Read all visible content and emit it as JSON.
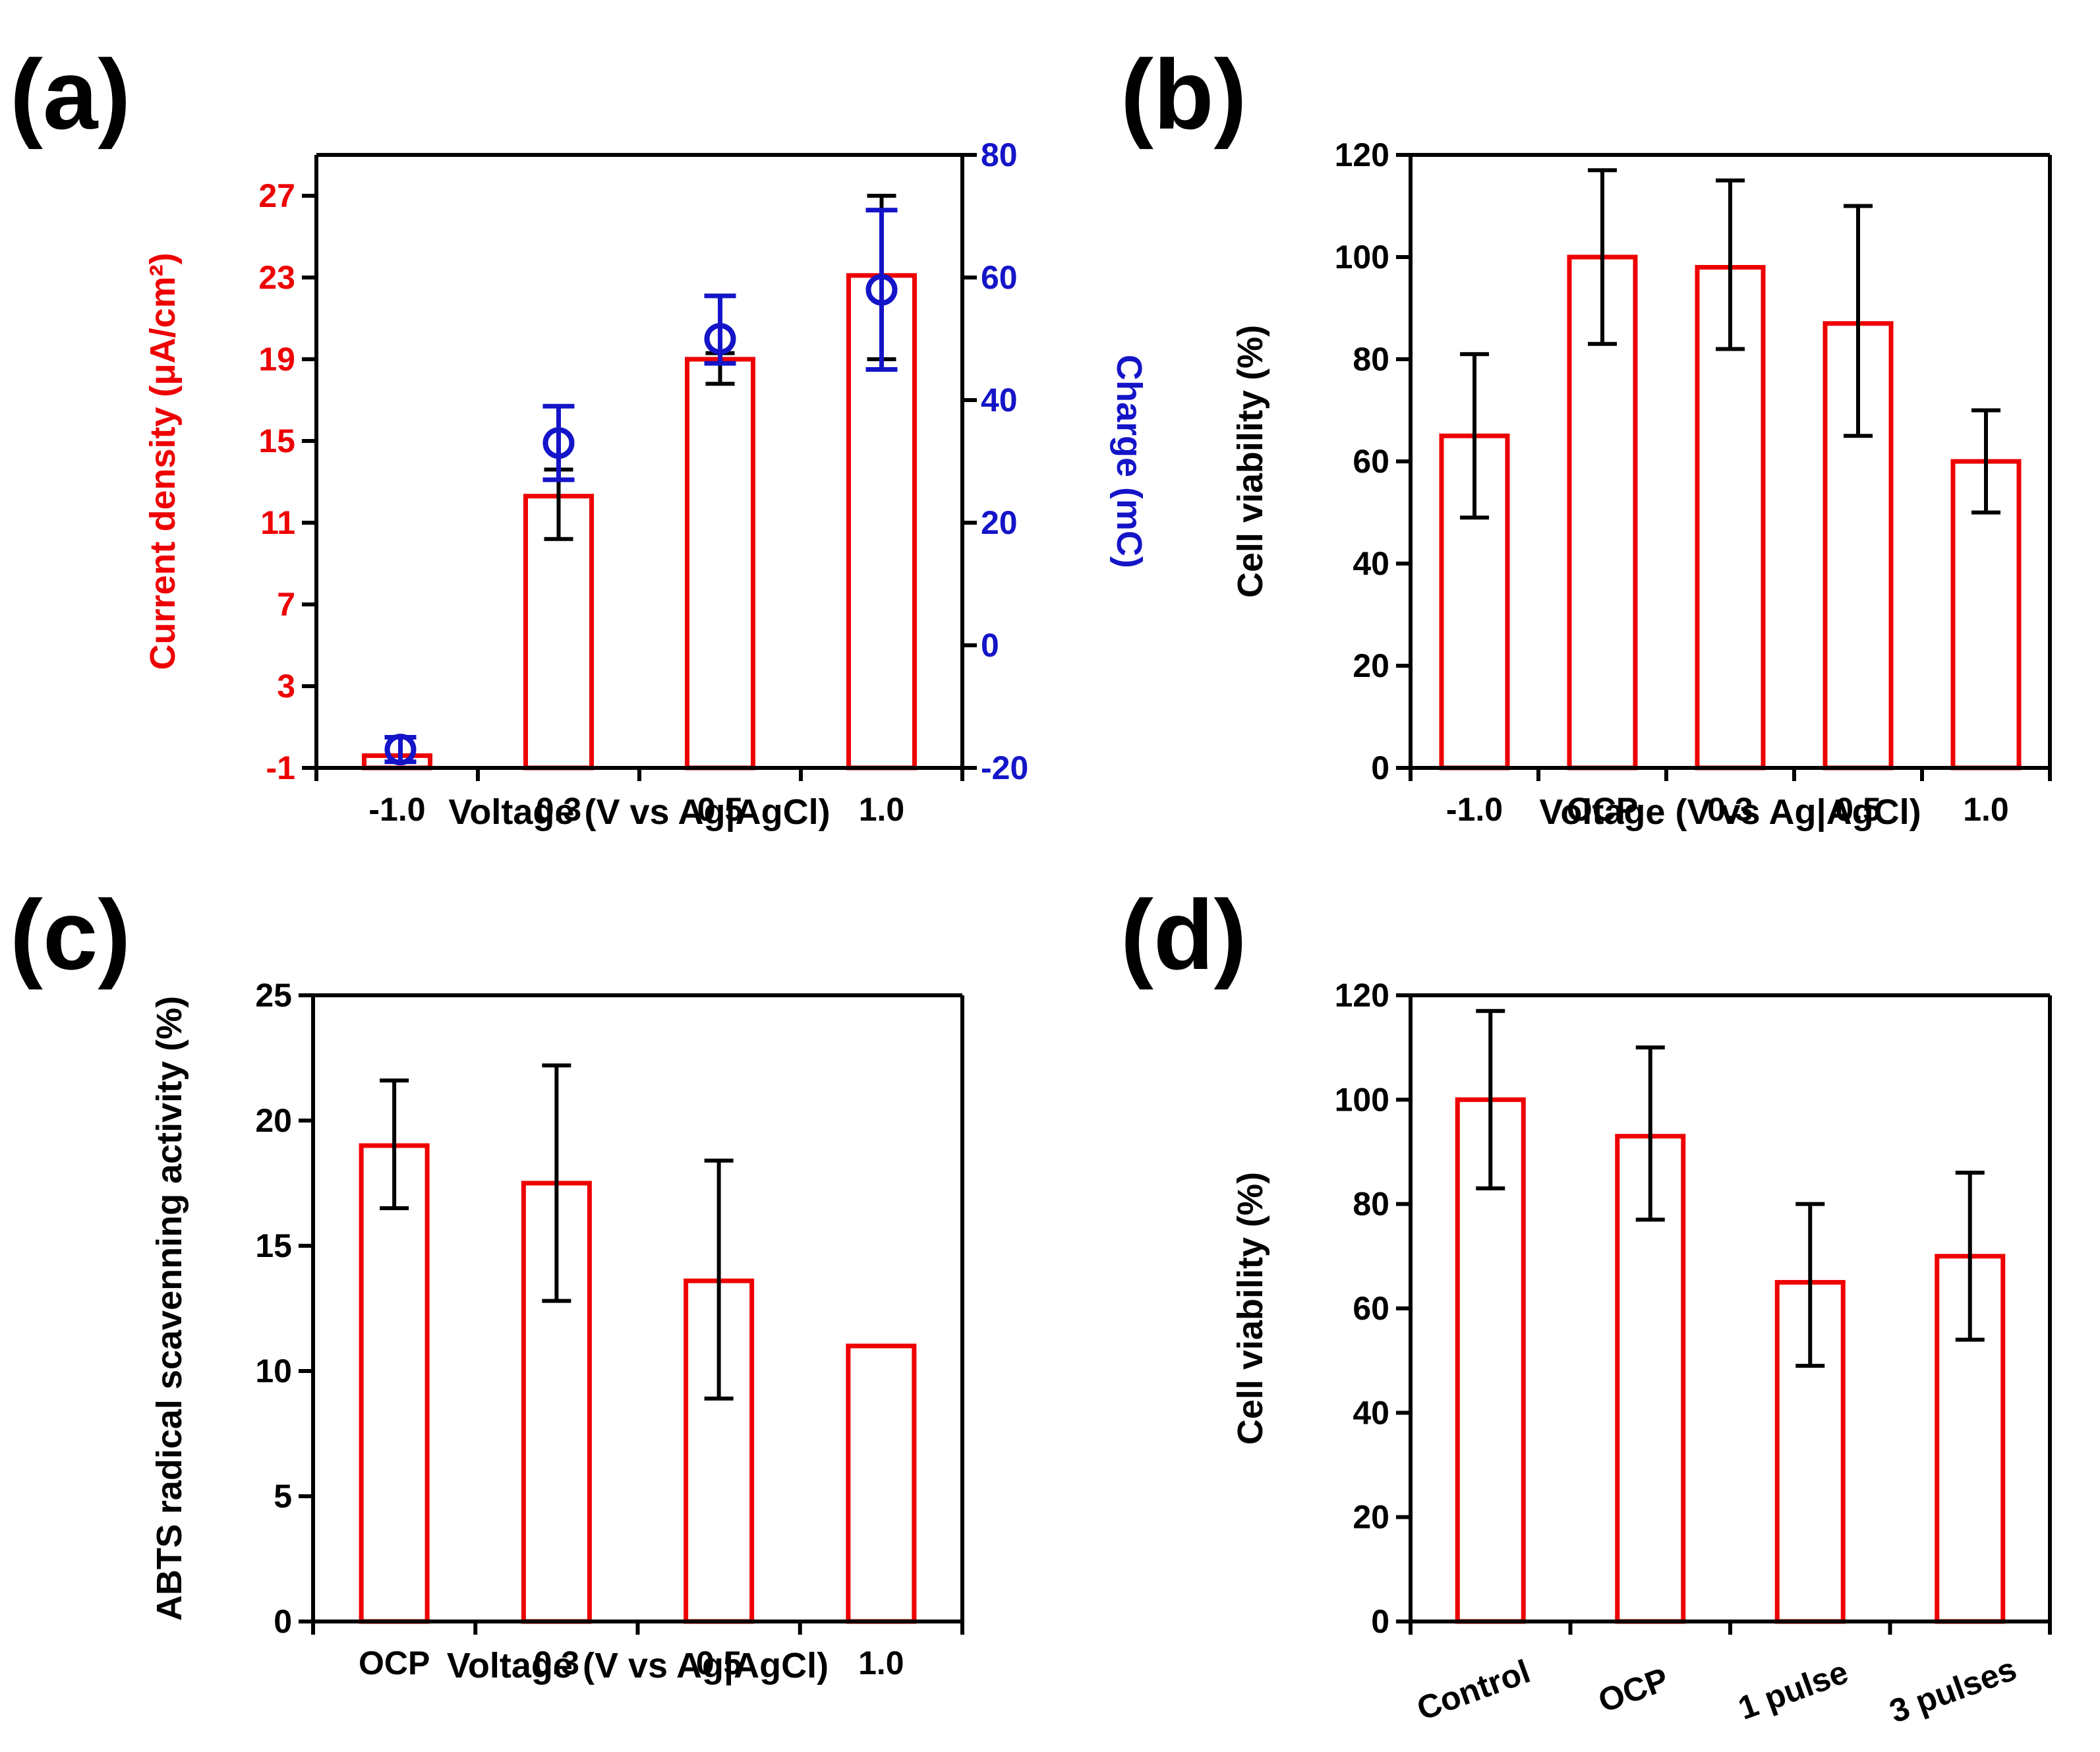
{
  "colors": {
    "bar": "#ee0000",
    "charge": "#1414c8",
    "axis": "#000000",
    "left_axis_a": "#ee0000"
  },
  "panels": {
    "a": "(a)",
    "b": "(b)",
    "c": "(c)",
    "d": "(d)"
  },
  "chart_data": [
    {
      "id": "a",
      "type": "bar",
      "categories": [
        "-1.0",
        "0.3",
        "0.5",
        "1.0"
      ],
      "xlabel": "Voltage (V vs Ag|AgCl)",
      "ylabel": "Current density (μA/cm²)",
      "ylim": [
        -1,
        29
      ],
      "yticks": [
        -1,
        3,
        7,
        11,
        15,
        19,
        23,
        27
      ],
      "series": [
        {
          "values": [
            -0.4,
            12.3,
            19.0,
            23.1
          ],
          "err_low": [
            null,
            10.2,
            17.8,
            19.0
          ],
          "err_high": [
            null,
            13.6,
            19.3,
            27.0
          ]
        }
      ],
      "secondary_axis": {
        "ylabel": "Charge (mC)",
        "ylim": [
          -20,
          80
        ],
        "yticks": [
          -20,
          0,
          20,
          40,
          60,
          80
        ],
        "marker": "circle",
        "values": [
          -17,
          33,
          50,
          58
        ],
        "err_low": [
          -19,
          27,
          46,
          45
        ],
        "err_high": [
          -15,
          39,
          57,
          71
        ]
      }
    },
    {
      "id": "b",
      "type": "bar",
      "categories": [
        "-1.0",
        "OCP",
        "0.3",
        "0.5",
        "1.0"
      ],
      "xlabel": "Voltage (V vs Ag|AgCl)",
      "ylabel": "Cell viability (%)",
      "ylim": [
        0,
        120
      ],
      "yticks": [
        0,
        20,
        40,
        60,
        80,
        100,
        120
      ],
      "series": [
        {
          "values": [
            65,
            100,
            98,
            87,
            60
          ],
          "err_low": [
            49,
            83,
            82,
            65,
            50
          ],
          "err_high": [
            81,
            117,
            115,
            110,
            70
          ]
        }
      ]
    },
    {
      "id": "c",
      "type": "bar",
      "categories": [
        "OCP",
        "0.3",
        "0.5",
        "1.0"
      ],
      "xlabel": "Voltage (V vs Ag|AgCl)",
      "ylabel": "ABTS radical scavenning activity (%)",
      "ylim": [
        0,
        25
      ],
      "yticks": [
        0,
        5,
        10,
        15,
        20,
        25
      ],
      "series": [
        {
          "values": [
            19.0,
            17.5,
            13.6,
            11.0
          ],
          "err_low": [
            16.5,
            12.8,
            8.9,
            null
          ],
          "err_high": [
            21.6,
            22.2,
            18.4,
            null
          ]
        }
      ]
    },
    {
      "id": "d",
      "type": "bar",
      "categories": [
        "Control",
        "OCP",
        "1 pulse",
        "3 pulses"
      ],
      "xlabel": "",
      "ylabel": "Cell viability (%)",
      "ylim": [
        0,
        120
      ],
      "yticks": [
        0,
        20,
        40,
        60,
        80,
        100,
        120
      ],
      "series": [
        {
          "values": [
            100,
            93,
            65,
            70
          ],
          "err_low": [
            83,
            77,
            49,
            54
          ],
          "err_high": [
            117,
            110,
            80,
            86
          ]
        }
      ]
    }
  ]
}
